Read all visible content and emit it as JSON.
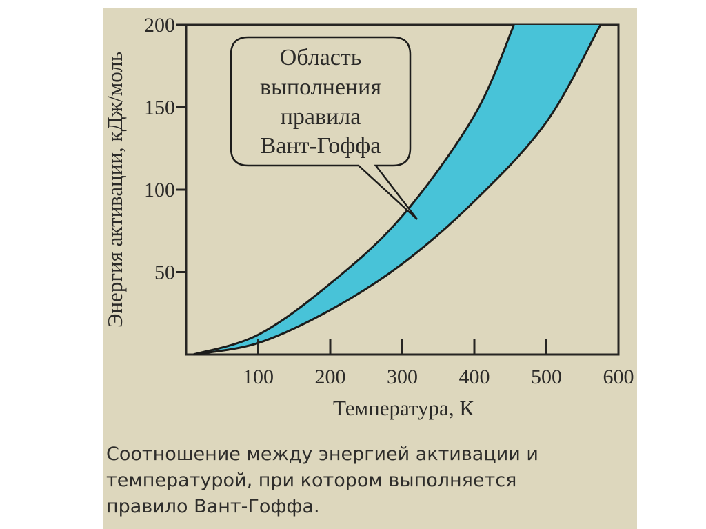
{
  "chart_data": {
    "type": "area",
    "title": "",
    "xlabel": "Температура, К",
    "ylabel": "Энергия активации, кДж/моль",
    "xlim": [
      0,
      600
    ],
    "ylim": [
      0,
      200
    ],
    "xticks": [
      100,
      200,
      300,
      400,
      500,
      600
    ],
    "yticks": [
      50,
      100,
      150,
      200
    ],
    "grid": false,
    "fill_color": "#48c3d8",
    "series": [
      {
        "x": [
          10,
          100,
          200,
          300,
          400,
          455
        ],
        "values": [
          0,
          12,
          43,
          84,
          145,
          200
        ]
      },
      {
        "x": [
          10,
          100,
          200,
          300,
          400,
          500,
          575
        ],
        "values": [
          0,
          7,
          27,
          55,
          93,
          141,
          200
        ]
      }
    ],
    "annotation": {
      "lines": [
        "Область",
        "выполнения",
        "правила",
        "Вант-Гоффа"
      ]
    }
  },
  "caption": {
    "lines": [
      "Соотношение между энергией активации и",
      "температурой, при котором выполняется",
      "правило Вант-Гоффа."
    ]
  }
}
